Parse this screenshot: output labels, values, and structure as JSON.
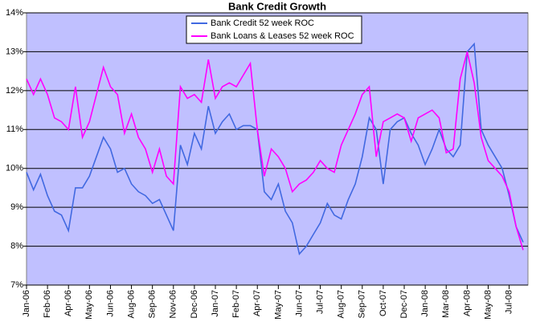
{
  "chart_data": {
    "type": "line",
    "title": "Bank Credit Growth",
    "categories": [
      "Jan-06",
      null,
      null,
      "Feb-06",
      null,
      null,
      "Apr-06",
      null,
      null,
      "May-06",
      null,
      null,
      "Jun-06",
      null,
      null,
      "Aug-06",
      null,
      null,
      "Sep-06",
      null,
      null,
      "Nov-06",
      null,
      null,
      "Dec-06",
      null,
      null,
      "Jan-07",
      null,
      null,
      "Feb-07",
      null,
      null,
      "Apr-07",
      null,
      null,
      "May-07",
      null,
      null,
      "Jun-07",
      null,
      null,
      "Jul-07",
      null,
      null,
      "Aug-07",
      null,
      null,
      "Sep-07",
      null,
      null,
      "Oct-07",
      null,
      null,
      "Dec-07",
      null,
      null,
      "Jan-08",
      null,
      null,
      "Mar-08",
      null,
      null,
      "Apr-08",
      null,
      null,
      "May-08",
      null,
      null,
      "Jul-08",
      null,
      null
    ],
    "series": [
      {
        "name": "Bank Credit 52 week ROC",
        "color": "#4169e1",
        "values": [
          9.9,
          9.45,
          9.85,
          9.3,
          8.9,
          8.8,
          8.4,
          9.5,
          9.5,
          9.8,
          10.3,
          10.8,
          10.5,
          9.9,
          10.0,
          9.6,
          9.4,
          9.3,
          9.1,
          9.2,
          8.8,
          8.4,
          10.6,
          10.1,
          10.9,
          10.5,
          11.6,
          10.9,
          11.2,
          11.4,
          11.0,
          11.1,
          11.1,
          11.0,
          9.4,
          9.2,
          9.6,
          8.9,
          8.6,
          7.8,
          8.0,
          8.3,
          8.6,
          9.1,
          8.8,
          8.7,
          9.2,
          9.6,
          10.3,
          11.3,
          11.0,
          9.6,
          11.0,
          11.2,
          11.3,
          10.9,
          10.6,
          10.1,
          10.5,
          11.0,
          10.5,
          10.3,
          10.6,
          13.0,
          13.2,
          11.0,
          10.6,
          10.3,
          10.0,
          9.3,
          8.5,
          8.1
        ]
      },
      {
        "name": "Bank Loans & Leases 52 week ROC",
        "color": "#ff00ff",
        "values": [
          12.3,
          11.9,
          12.3,
          11.9,
          11.3,
          11.2,
          11.0,
          12.1,
          10.8,
          11.2,
          11.9,
          12.6,
          12.1,
          11.9,
          10.9,
          11.4,
          10.8,
          10.5,
          9.9,
          10.5,
          9.8,
          9.6,
          12.1,
          11.8,
          11.9,
          11.7,
          12.8,
          11.8,
          12.1,
          12.2,
          12.1,
          12.4,
          12.7,
          11.0,
          9.8,
          10.5,
          10.3,
          10.0,
          9.4,
          9.6,
          9.7,
          9.9,
          10.2,
          10.0,
          9.9,
          10.6,
          11.0,
          11.4,
          11.9,
          12.1,
          10.3,
          11.2,
          11.3,
          11.4,
          11.3,
          10.7,
          11.3,
          11.4,
          11.5,
          11.3,
          10.4,
          10.5,
          12.3,
          13.0,
          12.2,
          10.8,
          10.2,
          10.0,
          9.8,
          9.4,
          8.5,
          7.9
        ]
      }
    ],
    "ylim": [
      7,
      14
    ],
    "yticks": [
      {
        "value": 7,
        "label": "7%"
      },
      {
        "value": 8,
        "label": "8%"
      },
      {
        "value": 9,
        "label": "9%"
      },
      {
        "value": 10,
        "label": "10%"
      },
      {
        "value": 11,
        "label": "11%"
      },
      {
        "value": 12,
        "label": "12%"
      },
      {
        "value": 13,
        "label": "13%"
      },
      {
        "value": 14,
        "label": "14%"
      }
    ],
    "grid": true,
    "legend": "top",
    "background": "#c0c0ff"
  }
}
